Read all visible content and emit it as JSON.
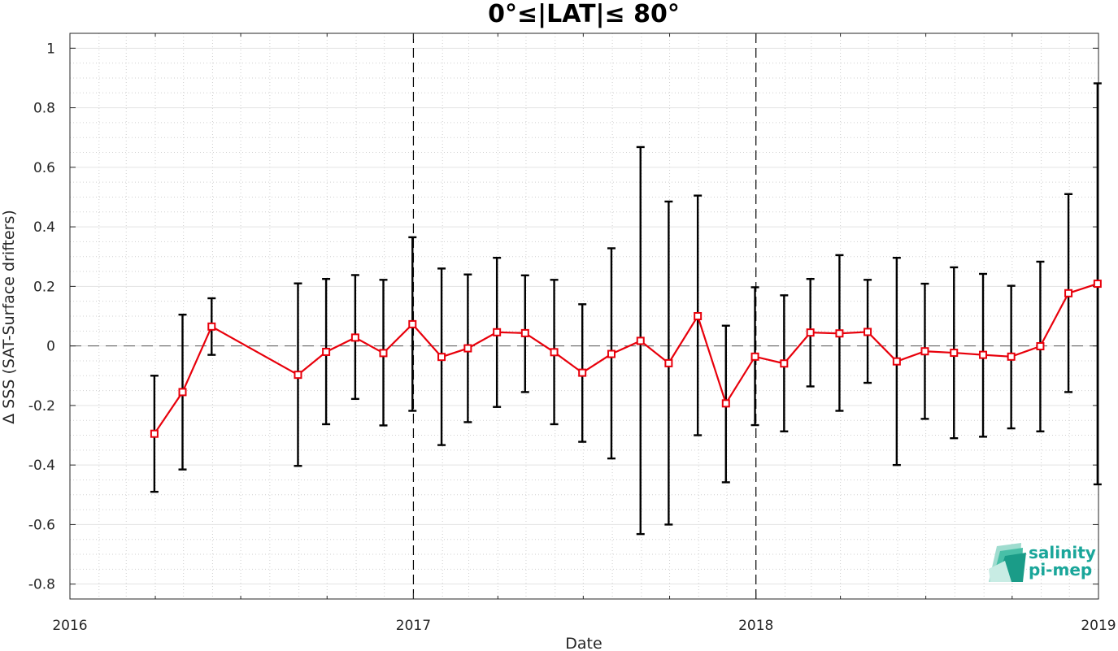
{
  "chart_data": {
    "type": "line",
    "title": "0°≤|LAT|≤ 80°",
    "xlabel": "Date",
    "ylabel": "Δ SSS (SAT-Surface drifters)",
    "xlim": [
      "2016-01-01",
      "2019-01-01"
    ],
    "ylim": [
      -0.85,
      1.05
    ],
    "x_ticks": [
      "2016",
      "2017",
      "2018",
      "2019"
    ],
    "y_ticks": [
      "1",
      "0.8",
      "0.6",
      "0.4",
      "0.2",
      "0",
      "-0.2",
      "-0.4",
      "-0.6",
      "-0.8"
    ],
    "y_tick_values": [
      1,
      0.8,
      0.6,
      0.4,
      0.2,
      0,
      -0.2,
      -0.4,
      -0.6,
      -0.8
    ],
    "grid": true,
    "minor_grid": true,
    "reference_line_y": 0,
    "year_boundaries": [
      "2017-01-01",
      "2018-01-01"
    ],
    "line_color": "#e8000b",
    "errorbar_color": "#000000",
    "series": [
      {
        "x": [
          "2016-03-31",
          "2016-04-30",
          "2016-05-31",
          "2016-08-31",
          "2016-09-30",
          "2016-10-31",
          "2016-11-30",
          "2016-12-31",
          "2017-01-31",
          "2017-02-28",
          "2017-03-31",
          "2017-04-30",
          "2017-05-31",
          "2017-06-30",
          "2017-07-31",
          "2017-08-31",
          "2017-09-30",
          "2017-10-31",
          "2017-11-30",
          "2017-12-31",
          "2018-01-31",
          "2018-02-28",
          "2018-03-31",
          "2018-04-30",
          "2018-05-31",
          "2018-06-30",
          "2018-07-31",
          "2018-08-31",
          "2018-09-30",
          "2018-10-31",
          "2018-11-30",
          "2018-12-31"
        ],
        "y": [
          -0.295,
          -0.155,
          0.065,
          -0.097,
          -0.02,
          0.028,
          -0.024,
          0.073,
          -0.037,
          -0.008,
          0.046,
          0.043,
          -0.021,
          -0.09,
          -0.027,
          0.017,
          -0.058,
          0.1,
          -0.193,
          -0.036,
          -0.059,
          0.045,
          0.042,
          0.047,
          -0.052,
          -0.018,
          -0.023,
          -0.03,
          -0.036,
          -0.001,
          0.177,
          0.209
        ],
        "y_upper": [
          -0.1,
          0.105,
          0.16,
          0.21,
          0.225,
          0.238,
          0.222,
          0.365,
          0.26,
          0.24,
          0.296,
          0.237,
          0.222,
          0.14,
          0.328,
          0.668,
          0.485,
          0.505,
          0.068,
          0.197,
          0.17,
          0.225,
          0.305,
          0.222,
          0.296,
          0.209,
          0.264,
          0.242,
          0.202,
          0.283,
          0.51,
          0.882
        ],
        "y_lower": [
          -0.49,
          -0.415,
          -0.03,
          -0.403,
          -0.263,
          -0.178,
          -0.267,
          -0.218,
          -0.333,
          -0.256,
          -0.205,
          -0.155,
          -0.263,
          -0.322,
          -0.378,
          -0.632,
          -0.6,
          -0.3,
          -0.458,
          -0.266,
          -0.287,
          -0.136,
          -0.218,
          -0.124,
          -0.4,
          -0.245,
          -0.31,
          -0.305,
          -0.277,
          -0.287,
          -0.155,
          -0.465
        ]
      }
    ]
  },
  "logo": {
    "line1": "salinity",
    "line2": "pi-mep"
  }
}
